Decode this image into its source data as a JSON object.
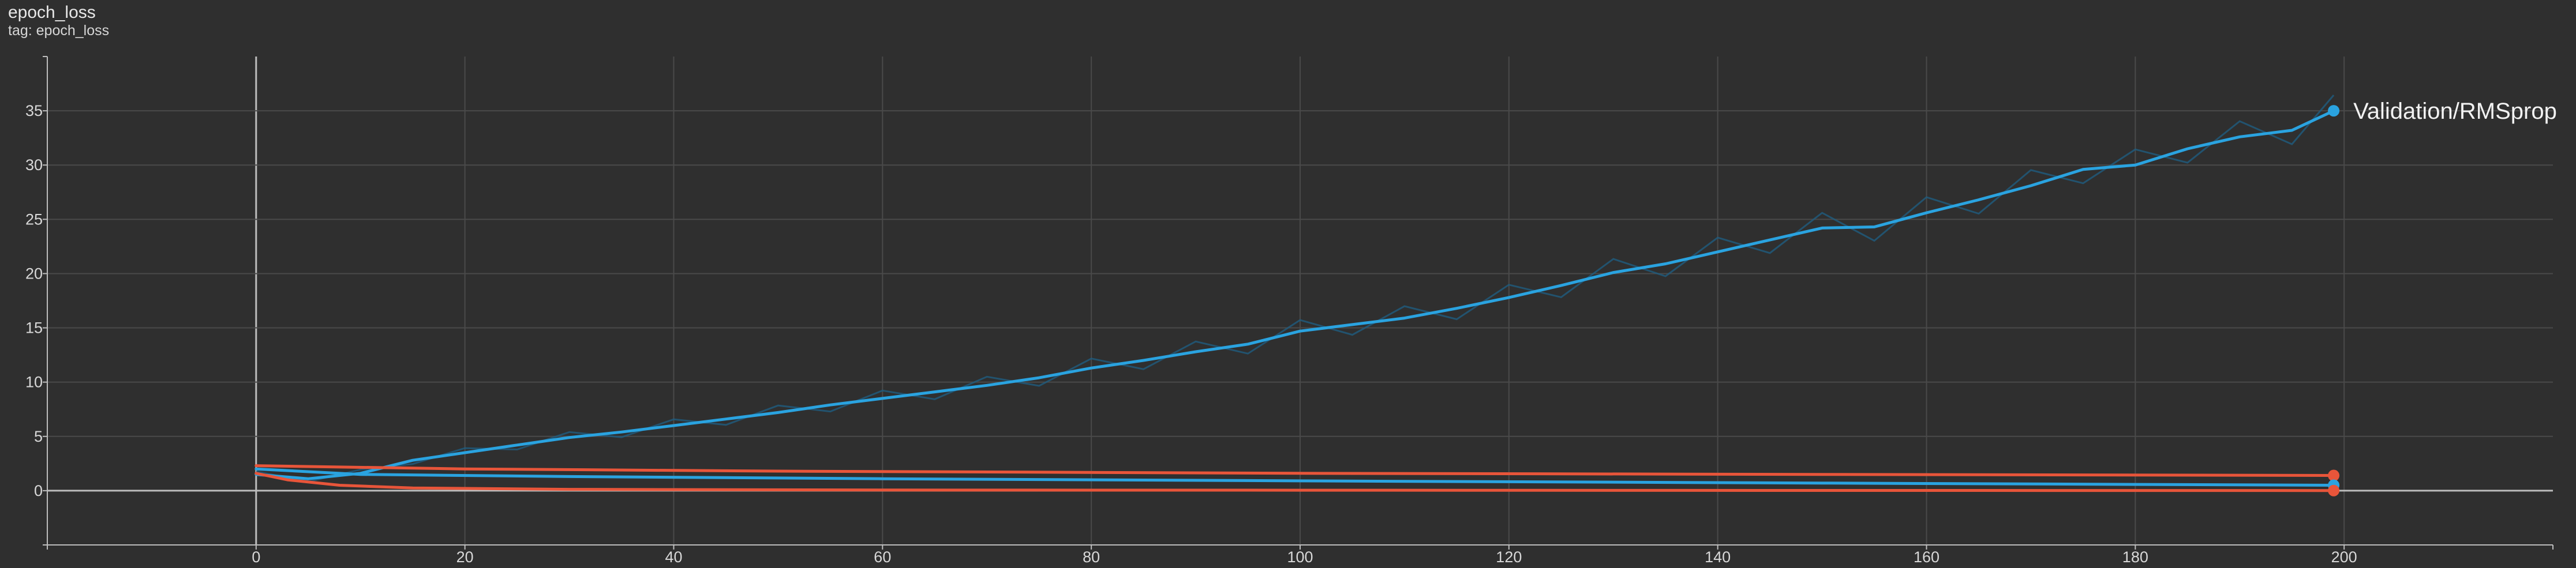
{
  "title": "epoch_loss",
  "subtitle": "tag: epoch_loss",
  "colors": {
    "background": "#2f2f2f",
    "grid": "#4a4a4a",
    "axis": "#bdbdbd",
    "blue": "#2aa3e0",
    "orange": "#e8553a",
    "faded_blue": "#1f5c7f"
  },
  "chart_data": {
    "type": "line",
    "title": "epoch_loss",
    "xlabel": "",
    "ylabel": "",
    "xlim": [
      -20,
      220
    ],
    "ylim": [
      -5,
      40
    ],
    "x_ticks": [
      0,
      20,
      40,
      60,
      80,
      100,
      120,
      140,
      160,
      180,
      200
    ],
    "y_ticks": [
      0,
      5,
      10,
      15,
      20,
      25,
      30,
      35
    ],
    "grid": true,
    "series": [
      {
        "name": "Validation/RMSprop",
        "color": "#2aa3e0",
        "x": [
          0,
          5,
          10,
          15,
          20,
          25,
          30,
          35,
          40,
          45,
          50,
          55,
          60,
          65,
          70,
          75,
          80,
          85,
          90,
          95,
          100,
          105,
          110,
          115,
          120,
          125,
          130,
          135,
          140,
          145,
          150,
          155,
          160,
          165,
          170,
          175,
          180,
          185,
          190,
          195,
          199
        ],
        "values": [
          1.5,
          1.1,
          1.6,
          2.8,
          3.5,
          4.2,
          4.9,
          5.4,
          6.0,
          6.6,
          7.2,
          7.9,
          8.5,
          9.1,
          9.7,
          10.4,
          11.3,
          12.0,
          12.8,
          13.5,
          14.7,
          15.3,
          15.9,
          16.8,
          17.8,
          18.9,
          20.1,
          20.9,
          22.0,
          23.1,
          24.2,
          24.3,
          25.6,
          26.8,
          28.1,
          29.6,
          30.0,
          31.5,
          32.6,
          33.2,
          35.0
        ],
        "show_label": true
      },
      {
        "name": "",
        "color": "#e8553a",
        "x": [
          0,
          20,
          50,
          100,
          150,
          199
        ],
        "values": [
          2.3,
          2.0,
          1.8,
          1.6,
          1.5,
          1.4
        ],
        "show_label": false
      },
      {
        "name": "",
        "color": "#2aa3e0",
        "x": [
          0,
          10,
          30,
          60,
          100,
          150,
          199
        ],
        "values": [
          2.0,
          1.5,
          1.3,
          1.1,
          0.9,
          0.7,
          0.5
        ],
        "show_label": false
      },
      {
        "name": "",
        "color": "#e8553a",
        "x": [
          0,
          3,
          8,
          15,
          30,
          60,
          100,
          150,
          199
        ],
        "values": [
          1.6,
          1.0,
          0.5,
          0.25,
          0.12,
          0.06,
          0.04,
          0.02,
          0.01
        ],
        "show_label": false
      }
    ]
  }
}
